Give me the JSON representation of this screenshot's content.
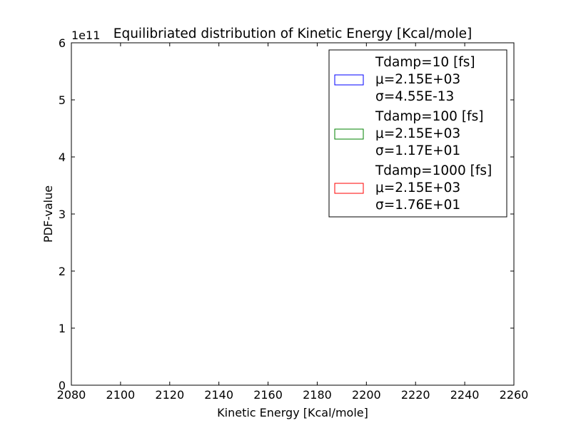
{
  "chart_data": {
    "type": "line",
    "title": "Equilibriated distribution of Kinetic Energy [Kcal/mole]",
    "xlabel": "Kinetic Energy [Kcal/mole]",
    "ylabel": "PDF-value",
    "y_offset_label": "1e11",
    "xlim": [
      2080,
      2260
    ],
    "ylim": [
      0,
      6
    ],
    "y_scale_factor": 100000000000.0,
    "x_ticks": [
      2080,
      2100,
      2120,
      2140,
      2160,
      2180,
      2200,
      2220,
      2240,
      2260
    ],
    "y_ticks": [
      0,
      1,
      2,
      3,
      4,
      5,
      6
    ],
    "grid": false,
    "legend_placement": "top-right",
    "series": [
      {
        "name": "Tdamp=10 [fs]",
        "mu_label": "μ=2.15E+03",
        "sigma_label": "σ=4.55E-13",
        "color": "#0000ff",
        "x": [
          2087,
          2195
        ],
        "y": [
          0,
          0
        ]
      },
      {
        "name": "Tdamp=100 [fs]",
        "mu_label": "μ=2.15E+03",
        "sigma_label": "σ=1.17E+01",
        "color": "#008000",
        "x": [
          2087,
          2110,
          2130,
          2150,
          2170,
          2195,
          2220,
          2249
        ],
        "y": [
          0,
          0,
          0,
          0,
          0,
          0,
          0,
          0
        ]
      },
      {
        "name": "Tdamp=1000 [fs]",
        "mu_label": "μ=2.15E+03",
        "sigma_label": "σ=1.76E+01",
        "color": "#ff0000",
        "x": [
          2087,
          2110,
          2130,
          2150,
          2170,
          2195
        ],
        "y": [
          0,
          0,
          0,
          0,
          0,
          0
        ]
      }
    ]
  }
}
